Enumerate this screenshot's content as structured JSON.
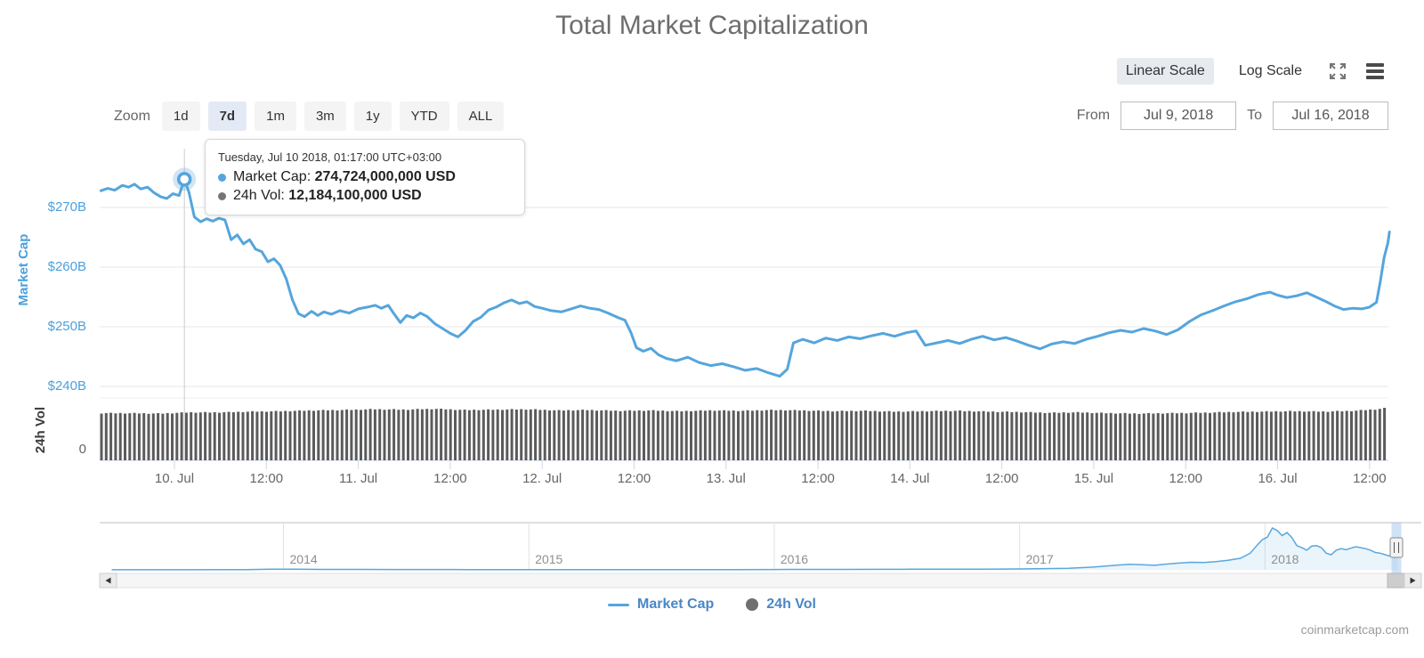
{
  "page": {
    "title": "Total Market Capitalization",
    "credit": "coinmarketcap.com"
  },
  "scale_toggle": {
    "linear_label": "Linear Scale",
    "log_label": "Log Scale",
    "selected": "linear"
  },
  "icons": {
    "fullscreen": "arrows-out-expand",
    "menu": "three-horizontal-bars",
    "scroll_left": "left-triangle",
    "scroll_right": "right-triangle",
    "navigator_handle": "vertical-grip"
  },
  "zoom_bar": {
    "label": "Zoom",
    "buttons": [
      {
        "label": "1d",
        "selected": false
      },
      {
        "label": "7d",
        "selected": true
      },
      {
        "label": "1m",
        "selected": false
      },
      {
        "label": "3m",
        "selected": false
      },
      {
        "label": "1y",
        "selected": false
      },
      {
        "label": "YTD",
        "selected": false
      },
      {
        "label": "ALL",
        "selected": false
      }
    ]
  },
  "range_selector": {
    "from_label": "From",
    "from_value": "Jul 9, 2018",
    "to_label": "To",
    "to_value": "Jul 16, 2018"
  },
  "tooltip": {
    "timestamp": "Tuesday, Jul 10 2018, 01:17:00 UTC+03:00",
    "rows": [
      {
        "label": "Market Cap:",
        "value": "274,724,000,000 USD",
        "color": "#55a5dc"
      },
      {
        "label": "24h Vol:",
        "value": "12,184,100,000 USD",
        "color": "#757575"
      }
    ]
  },
  "legend": [
    {
      "label": "Market Cap",
      "marker": "line",
      "color": "#55a5dc"
    },
    {
      "label": "24h Vol",
      "marker": "circle",
      "color": "#6f6f6f"
    }
  ],
  "colors": {
    "line": "#55a5dc",
    "volume_bar": "#5b5b5b",
    "grid": "#e7e7e7",
    "axis": "#ccd6eb",
    "y_label_blue": "#4ba0dc",
    "crosshair": "#cccccc",
    "selected_zoom_bg": "#e4eaf5",
    "selected_scale_bg": "#e7eaee"
  },
  "chart_data": {
    "type": "line",
    "title": "Total Market Capitalization",
    "x_axis": {
      "unit": "hours since 2018-07-09 12:00 UTC+03:00",
      "ticks": [
        {
          "t": 24,
          "label": "10. Jul"
        },
        {
          "t": 36,
          "label": "12:00"
        },
        {
          "t": 48,
          "label": "11. Jul"
        },
        {
          "t": 60,
          "label": "12:00"
        },
        {
          "t": 72,
          "label": "12. Jul"
        },
        {
          "t": 84,
          "label": "12:00"
        },
        {
          "t": 96,
          "label": "13. Jul"
        },
        {
          "t": 108,
          "label": "12:00"
        },
        {
          "t": 120,
          "label": "14. Jul"
        },
        {
          "t": 132,
          "label": "12:00"
        },
        {
          "t": 144,
          "label": "15. Jul"
        },
        {
          "t": 156,
          "label": "12:00"
        },
        {
          "t": 168,
          "label": "16. Jul"
        },
        {
          "t": 180,
          "label": "12:00"
        }
      ]
    },
    "y_axis_market_cap": {
      "title": "Market Cap",
      "unit": "USD billions",
      "ticks": [
        {
          "v": 270,
          "label": "$270B"
        },
        {
          "v": 260,
          "label": "$260B"
        },
        {
          "v": 250,
          "label": "$250B"
        },
        {
          "v": 240,
          "label": "$240B"
        }
      ]
    },
    "y_axis_volume": {
      "title": "24h Vol",
      "unit": "USD billions",
      "zero_label": "0"
    },
    "highlight_point": {
      "t": 25.3,
      "market_cap_b": 274.724,
      "volume_b": 12.1841
    },
    "series": [
      {
        "name": "Market Cap",
        "type": "line",
        "color": "#55a5dc",
        "points": [
          [
            14.4,
            272.8
          ],
          [
            15.3,
            273.2
          ],
          [
            16.2,
            272.9
          ],
          [
            17.2,
            273.7
          ],
          [
            18.0,
            273.4
          ],
          [
            18.8,
            273.9
          ],
          [
            19.6,
            273.1
          ],
          [
            20.5,
            273.4
          ],
          [
            21.3,
            272.5
          ],
          [
            22.2,
            271.8
          ],
          [
            23.0,
            271.5
          ],
          [
            23.8,
            272.3
          ],
          [
            24.6,
            272.0
          ],
          [
            25.3,
            274.7
          ],
          [
            25.9,
            272.5
          ],
          [
            26.6,
            268.4
          ],
          [
            27.4,
            267.6
          ],
          [
            28.2,
            268.1
          ],
          [
            29.0,
            267.7
          ],
          [
            29.8,
            268.2
          ],
          [
            30.6,
            267.9
          ],
          [
            31.4,
            264.6
          ],
          [
            32.2,
            265.4
          ],
          [
            33.0,
            263.9
          ],
          [
            33.8,
            264.6
          ],
          [
            34.6,
            263.0
          ],
          [
            35.4,
            262.6
          ],
          [
            36.2,
            260.9
          ],
          [
            37.0,
            261.4
          ],
          [
            37.8,
            260.3
          ],
          [
            38.6,
            258.0
          ],
          [
            39.4,
            254.5
          ],
          [
            40.2,
            252.2
          ],
          [
            41.0,
            251.7
          ],
          [
            41.9,
            252.6
          ],
          [
            42.7,
            251.9
          ],
          [
            43.5,
            252.5
          ],
          [
            44.5,
            252.1
          ],
          [
            45.6,
            252.7
          ],
          [
            46.8,
            252.3
          ],
          [
            48.0,
            253.0
          ],
          [
            49.2,
            253.3
          ],
          [
            50.2,
            253.6
          ],
          [
            51.0,
            253.1
          ],
          [
            51.9,
            253.6
          ],
          [
            52.7,
            252.1
          ],
          [
            53.5,
            250.7
          ],
          [
            54.3,
            251.9
          ],
          [
            55.2,
            251.5
          ],
          [
            56.1,
            252.3
          ],
          [
            57.0,
            251.7
          ],
          [
            58.0,
            250.5
          ],
          [
            59.0,
            249.7
          ],
          [
            60.0,
            248.9
          ],
          [
            61.0,
            248.3
          ],
          [
            62.0,
            249.4
          ],
          [
            63.0,
            250.9
          ],
          [
            64.0,
            251.6
          ],
          [
            65.0,
            252.8
          ],
          [
            66.0,
            253.3
          ],
          [
            67.0,
            254.0
          ],
          [
            68.0,
            254.5
          ],
          [
            69.0,
            253.9
          ],
          [
            70.0,
            254.2
          ],
          [
            71.0,
            253.4
          ],
          [
            72.0,
            253.1
          ],
          [
            73.2,
            252.7
          ],
          [
            74.5,
            252.5
          ],
          [
            75.8,
            253.0
          ],
          [
            77.0,
            253.5
          ],
          [
            78.2,
            253.1
          ],
          [
            79.4,
            252.9
          ],
          [
            80.6,
            252.3
          ],
          [
            81.8,
            251.6
          ],
          [
            82.8,
            251.1
          ],
          [
            83.6,
            249.0
          ],
          [
            84.3,
            246.5
          ],
          [
            85.2,
            245.9
          ],
          [
            86.2,
            246.4
          ],
          [
            87.2,
            245.3
          ],
          [
            88.2,
            244.7
          ],
          [
            89.5,
            244.3
          ],
          [
            91.0,
            244.9
          ],
          [
            92.5,
            244.0
          ],
          [
            94.0,
            243.5
          ],
          [
            95.5,
            243.8
          ],
          [
            97.0,
            243.3
          ],
          [
            98.5,
            242.7
          ],
          [
            100.0,
            243.0
          ],
          [
            101.5,
            242.3
          ],
          [
            103.0,
            241.7
          ],
          [
            104.0,
            242.9
          ],
          [
            104.8,
            247.3
          ],
          [
            106.0,
            247.9
          ],
          [
            107.5,
            247.3
          ],
          [
            109.0,
            248.1
          ],
          [
            110.5,
            247.7
          ],
          [
            112.0,
            248.3
          ],
          [
            113.5,
            248.0
          ],
          [
            115.0,
            248.5
          ],
          [
            116.5,
            248.9
          ],
          [
            118.0,
            248.4
          ],
          [
            119.5,
            249.0
          ],
          [
            120.8,
            249.3
          ],
          [
            122.0,
            246.9
          ],
          [
            123.5,
            247.3
          ],
          [
            125.0,
            247.7
          ],
          [
            126.5,
            247.2
          ],
          [
            128.0,
            247.9
          ],
          [
            129.5,
            248.4
          ],
          [
            131.0,
            247.8
          ],
          [
            132.5,
            248.2
          ],
          [
            134.0,
            247.6
          ],
          [
            135.5,
            246.9
          ],
          [
            137.0,
            246.3
          ],
          [
            138.5,
            247.1
          ],
          [
            140.0,
            247.5
          ],
          [
            141.5,
            247.2
          ],
          [
            143.0,
            247.9
          ],
          [
            144.5,
            248.4
          ],
          [
            146.0,
            249.0
          ],
          [
            147.5,
            249.4
          ],
          [
            149.0,
            249.1
          ],
          [
            150.5,
            249.7
          ],
          [
            152.0,
            249.3
          ],
          [
            153.5,
            248.7
          ],
          [
            155.0,
            249.5
          ],
          [
            156.5,
            250.9
          ],
          [
            158.0,
            252.0
          ],
          [
            159.5,
            252.7
          ],
          [
            161.0,
            253.5
          ],
          [
            162.5,
            254.2
          ],
          [
            164.0,
            254.7
          ],
          [
            165.5,
            255.4
          ],
          [
            167.0,
            255.8
          ],
          [
            168.0,
            255.3
          ],
          [
            169.2,
            254.9
          ],
          [
            170.5,
            255.2
          ],
          [
            171.8,
            255.7
          ],
          [
            173.0,
            255.0
          ],
          [
            174.2,
            254.3
          ],
          [
            175.4,
            253.5
          ],
          [
            176.6,
            252.9
          ],
          [
            177.8,
            253.1
          ],
          [
            179.0,
            253.0
          ],
          [
            180.0,
            253.3
          ],
          [
            180.9,
            254.1
          ],
          [
            181.4,
            257.6
          ],
          [
            181.9,
            261.6
          ],
          [
            182.4,
            264.1
          ],
          [
            182.6,
            265.9
          ]
        ]
      },
      {
        "name": "24h Vol",
        "type": "column",
        "color": "#5b5b5b",
        "points": [
          [
            14.3,
            11.9
          ],
          [
            18,
            11.9
          ],
          [
            22,
            11.8
          ],
          [
            26,
            12.1
          ],
          [
            30,
            12.1
          ],
          [
            34,
            12.3
          ],
          [
            38,
            12.4
          ],
          [
            42,
            12.6
          ],
          [
            46,
            12.7
          ],
          [
            50,
            12.9
          ],
          [
            54,
            12.8
          ],
          [
            58,
            13.0
          ],
          [
            62,
            12.7
          ],
          [
            66,
            12.8
          ],
          [
            70,
            12.9
          ],
          [
            74,
            12.6
          ],
          [
            78,
            12.7
          ],
          [
            82,
            12.5
          ],
          [
            86,
            12.6
          ],
          [
            90,
            12.4
          ],
          [
            94,
            12.6
          ],
          [
            98,
            12.5
          ],
          [
            102,
            12.7
          ],
          [
            106,
            12.6
          ],
          [
            110,
            12.4
          ],
          [
            114,
            12.5
          ],
          [
            118,
            12.3
          ],
          [
            122,
            12.4
          ],
          [
            126,
            12.5
          ],
          [
            130,
            12.3
          ],
          [
            134,
            12.2
          ],
          [
            138,
            12.0
          ],
          [
            142,
            12.1
          ],
          [
            146,
            11.9
          ],
          [
            150,
            11.8
          ],
          [
            154,
            11.9
          ],
          [
            158,
            12.0
          ],
          [
            162,
            12.2
          ],
          [
            166,
            12.3
          ],
          [
            170,
            12.4
          ],
          [
            174,
            12.3
          ],
          [
            178,
            12.5
          ],
          [
            181,
            12.9
          ],
          [
            182.9,
            13.4
          ]
        ]
      }
    ],
    "navigator": {
      "year_ticks": [
        2014,
        2015,
        2016,
        2017,
        2018
      ],
      "unit": "total market cap, USD billions by year",
      "points": [
        [
          2013.3,
          1
        ],
        [
          2013.6,
          1.5
        ],
        [
          2013.85,
          6
        ],
        [
          2013.95,
          13
        ],
        [
          2014.0,
          14
        ],
        [
          2014.05,
          12
        ],
        [
          2014.15,
          8
        ],
        [
          2014.3,
          8.5
        ],
        [
          2014.45,
          7.5
        ],
        [
          2014.6,
          7
        ],
        [
          2014.75,
          6
        ],
        [
          2014.9,
          5.5
        ],
        [
          2015.0,
          5
        ],
        [
          2015.1,
          4.5
        ],
        [
          2015.25,
          4
        ],
        [
          2015.4,
          4.2
        ],
        [
          2015.55,
          4
        ],
        [
          2015.7,
          4.3
        ],
        [
          2015.85,
          4.8
        ],
        [
          2016.0,
          7
        ],
        [
          2016.15,
          8
        ],
        [
          2016.3,
          8.5
        ],
        [
          2016.45,
          10
        ],
        [
          2016.55,
          12
        ],
        [
          2016.7,
          12.5
        ],
        [
          2016.85,
          13.5
        ],
        [
          2017.0,
          18
        ],
        [
          2017.1,
          25
        ],
        [
          2017.2,
          30
        ],
        [
          2017.3,
          55
        ],
        [
          2017.4,
          95
        ],
        [
          2017.45,
          110
        ],
        [
          2017.5,
          100
        ],
        [
          2017.55,
          90
        ],
        [
          2017.6,
          115
        ],
        [
          2017.65,
          135
        ],
        [
          2017.7,
          150
        ],
        [
          2017.75,
          145
        ],
        [
          2017.8,
          165
        ],
        [
          2017.85,
          190
        ],
        [
          2017.9,
          230
        ],
        [
          2017.94,
          330
        ],
        [
          2017.97,
          500
        ],
        [
          2017.99,
          600
        ],
        [
          2018.01,
          650
        ],
        [
          2018.03,
          830
        ],
        [
          2018.05,
          780
        ],
        [
          2018.07,
          680
        ],
        [
          2018.09,
          740
        ],
        [
          2018.11,
          640
        ],
        [
          2018.13,
          480
        ],
        [
          2018.15,
          440
        ],
        [
          2018.17,
          390
        ],
        [
          2018.19,
          470
        ],
        [
          2018.21,
          480
        ],
        [
          2018.23,
          440
        ],
        [
          2018.25,
          330
        ],
        [
          2018.27,
          300
        ],
        [
          2018.29,
          390
        ],
        [
          2018.31,
          420
        ],
        [
          2018.33,
          400
        ],
        [
          2018.35,
          430
        ],
        [
          2018.37,
          460
        ],
        [
          2018.39,
          440
        ],
        [
          2018.41,
          420
        ],
        [
          2018.43,
          390
        ],
        [
          2018.45,
          345
        ],
        [
          2018.47,
          330
        ],
        [
          2018.49,
          300
        ],
        [
          2018.51,
          270
        ],
        [
          2018.53,
          250
        ],
        [
          2018.54,
          274
        ]
      ],
      "selected_range": {
        "from_year": 2018.52,
        "to_year": 2018.54
      }
    }
  }
}
